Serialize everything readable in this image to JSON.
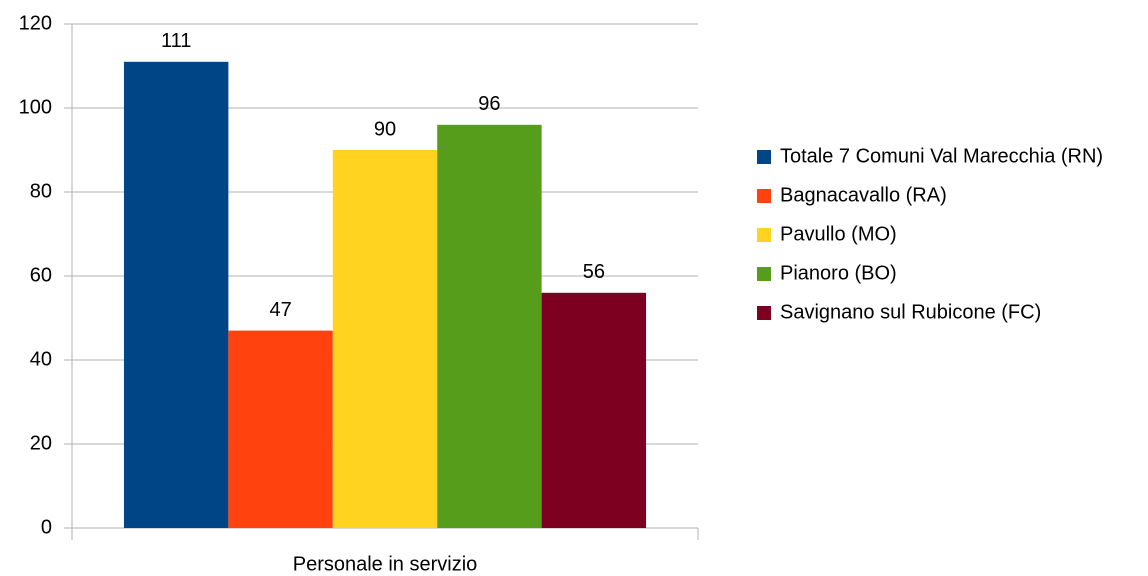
{
  "chart_data": {
    "type": "bar",
    "categories": [
      "Personale in servizio"
    ],
    "series": [
      {
        "name": "Totale 7 Comuni Val Marecchia (RN)",
        "color": "#004586",
        "values": [
          111
        ]
      },
      {
        "name": "Bagnacavallo (RA)",
        "color": "#ff420e",
        "values": [
          47
        ]
      },
      {
        "name": "Pavullo (MO)",
        "color": "#ffd320",
        "values": [
          90
        ]
      },
      {
        "name": "Pianoro (BO)",
        "color": "#579d1c",
        "values": [
          96
        ]
      },
      {
        "name": "Savignano sul Rubicone (FC)",
        "color": "#7e0021",
        "values": [
          56
        ]
      }
    ],
    "ylim": [
      0,
      120
    ],
    "yticks": [
      0,
      20,
      40,
      60,
      80,
      100,
      120
    ],
    "grid": true,
    "legend": "right"
  }
}
